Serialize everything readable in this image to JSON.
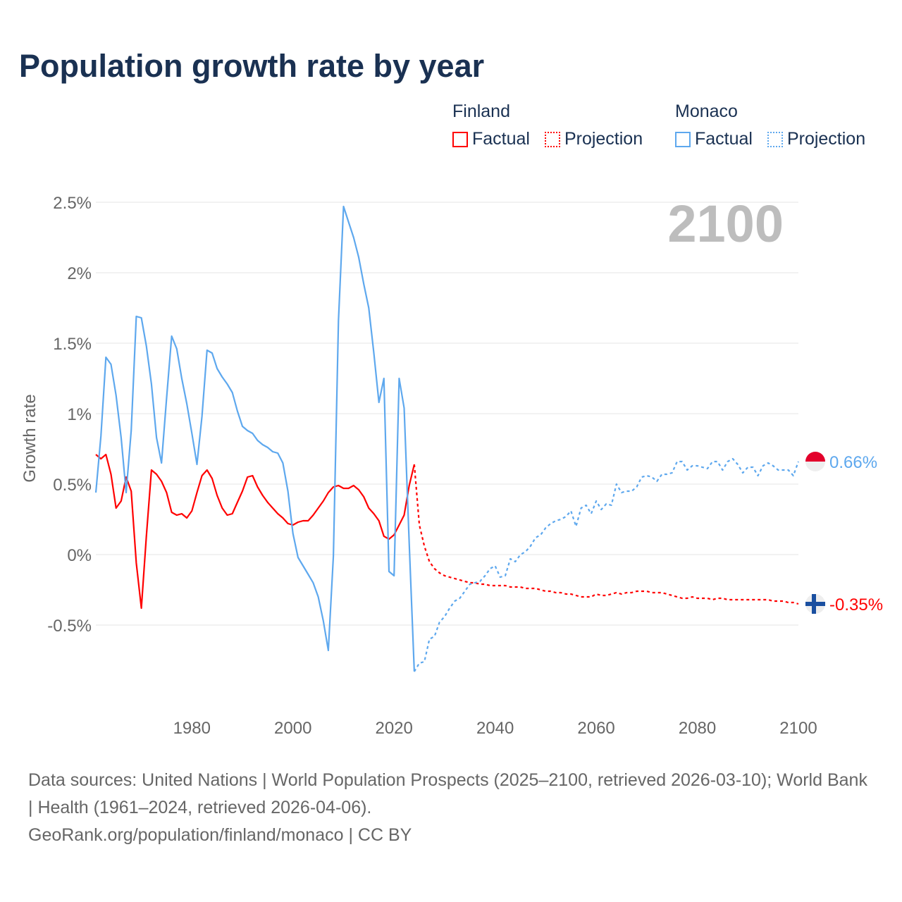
{
  "chart_data": {
    "type": "line",
    "title": "Population growth rate by year",
    "ylabel": "Growth rate",
    "xlabel": "",
    "xlim": [
      1961,
      2100
    ],
    "ylim": [
      -1.0,
      2.5
    ],
    "grid": true,
    "x_ticks": [
      1980,
      2000,
      2020,
      2040,
      2060,
      2080,
      2100
    ],
    "x_tick_labels": [
      "1980",
      "2000",
      "2020",
      "2040",
      "2060",
      "2080",
      "2100"
    ],
    "y_ticks": [
      -0.5,
      0,
      0.5,
      1,
      1.5,
      2,
      2.5
    ],
    "y_tick_labels": [
      "-0.5%",
      "0%",
      "0.5%",
      "1%",
      "1.5%",
      "2%",
      "2.5%"
    ],
    "year_label": "2100",
    "legend": {
      "placement": "top-right",
      "groups": [
        {
          "name": "Finland",
          "factual": "Factual",
          "projection": "Projection",
          "color": "#ff0000"
        },
        {
          "name": "Monaco",
          "factual": "Factual",
          "projection": "Projection",
          "color": "#5ea8ee"
        }
      ]
    },
    "series": [
      {
        "name": "Finland",
        "kind": "Factual",
        "color": "#ff0000",
        "start_year": 1961,
        "values": [
          0.71,
          0.68,
          0.71,
          0.57,
          0.33,
          0.38,
          0.55,
          0.45,
          -0.06,
          -0.38,
          0.13,
          0.6,
          0.57,
          0.52,
          0.44,
          0.3,
          0.28,
          0.29,
          0.26,
          0.31,
          0.44,
          0.56,
          0.6,
          0.54,
          0.42,
          0.33,
          0.28,
          0.29,
          0.37,
          0.45,
          0.55,
          0.56,
          0.48,
          0.42,
          0.37,
          0.33,
          0.29,
          0.26,
          0.22,
          0.21,
          0.23,
          0.24,
          0.24,
          0.28,
          0.33,
          0.38,
          0.44,
          0.48,
          0.49,
          0.47,
          0.47,
          0.49,
          0.46,
          0.41,
          0.33,
          0.29,
          0.24,
          0.13,
          0.11,
          0.14,
          0.21,
          0.28,
          0.49,
          0.64
        ]
      },
      {
        "name": "Finland",
        "kind": "Projection",
        "color": "#ff0000",
        "start_year": 2024,
        "values": [
          0.64,
          0.21,
          0.06,
          -0.05,
          -0.1,
          -0.13,
          -0.15,
          -0.16,
          -0.17,
          -0.18,
          -0.19,
          -0.2,
          -0.2,
          -0.21,
          -0.21,
          -0.22,
          -0.22,
          -0.22,
          -0.22,
          -0.23,
          -0.23,
          -0.23,
          -0.24,
          -0.24,
          -0.24,
          -0.25,
          -0.26,
          -0.26,
          -0.27,
          -0.27,
          -0.28,
          -0.28,
          -0.29,
          -0.3,
          -0.3,
          -0.3,
          -0.28,
          -0.29,
          -0.29,
          -0.28,
          -0.27,
          -0.28,
          -0.27,
          -0.27,
          -0.26,
          -0.26,
          -0.26,
          -0.27,
          -0.27,
          -0.27,
          -0.28,
          -0.29,
          -0.3,
          -0.31,
          -0.31,
          -0.3,
          -0.31,
          -0.31,
          -0.31,
          -0.32,
          -0.31,
          -0.31,
          -0.32,
          -0.32,
          -0.32,
          -0.32,
          -0.32,
          -0.32,
          -0.32,
          -0.32,
          -0.32,
          -0.33,
          -0.33,
          -0.33,
          -0.34,
          -0.34,
          -0.35
        ]
      },
      {
        "name": "Monaco",
        "kind": "Factual",
        "color": "#5ea8ee",
        "start_year": 1961,
        "values": [
          0.44,
          0.84,
          1.4,
          1.35,
          1.13,
          0.83,
          0.44,
          0.88,
          1.69,
          1.68,
          1.48,
          1.21,
          0.83,
          0.65,
          1.11,
          1.55,
          1.46,
          1.25,
          1.07,
          0.86,
          0.64,
          0.98,
          1.45,
          1.43,
          1.32,
          1.26,
          1.21,
          1.15,
          1.02,
          0.91,
          0.88,
          0.86,
          0.81,
          0.78,
          0.76,
          0.73,
          0.72,
          0.65,
          0.45,
          0.15,
          -0.02,
          -0.08,
          -0.14,
          -0.2,
          -0.3,
          -0.47,
          -0.68,
          -0.01,
          1.66,
          2.47,
          2.36,
          2.25,
          2.11,
          1.92,
          1.75,
          1.43,
          1.08,
          1.25,
          -0.12,
          -0.15,
          1.25,
          1.04,
          0.08,
          -0.83
        ]
      },
      {
        "name": "Monaco",
        "kind": "Projection",
        "color": "#5ea8ee",
        "start_year": 2024,
        "values": [
          -0.83,
          -0.77,
          -0.76,
          -0.6,
          -0.58,
          -0.48,
          -0.44,
          -0.38,
          -0.33,
          -0.31,
          -0.26,
          -0.21,
          -0.2,
          -0.19,
          -0.15,
          -0.1,
          -0.08,
          -0.16,
          -0.15,
          -0.03,
          -0.05,
          0.0,
          0.02,
          0.06,
          0.12,
          0.14,
          0.19,
          0.22,
          0.24,
          0.25,
          0.27,
          0.31,
          0.2,
          0.33,
          0.35,
          0.29,
          0.38,
          0.32,
          0.36,
          0.35,
          0.5,
          0.44,
          0.45,
          0.45,
          0.48,
          0.55,
          0.56,
          0.55,
          0.52,
          0.57,
          0.57,
          0.58,
          0.66,
          0.66,
          0.6,
          0.63,
          0.63,
          0.62,
          0.61,
          0.66,
          0.66,
          0.6,
          0.66,
          0.68,
          0.64,
          0.58,
          0.62,
          0.62,
          0.56,
          0.63,
          0.65,
          0.63,
          0.6,
          0.6,
          0.6,
          0.56,
          0.66
        ]
      }
    ],
    "end_labels": [
      {
        "country": "Monaco",
        "text": "0.66%",
        "value": 0.66,
        "color": "#5ea8ee"
      },
      {
        "country": "Finland",
        "text": "-0.35%",
        "value": -0.35,
        "color": "#ff0000"
      }
    ]
  },
  "footer": {
    "sources": "Data sources: United Nations | World Population Prospects (2025–2100, retrieved 2026-03-10); World Bank | Health (1961–2024, retrieved 2026-04-06).",
    "credit": "GeoRank.org/population/finland/monaco | CC BY"
  }
}
